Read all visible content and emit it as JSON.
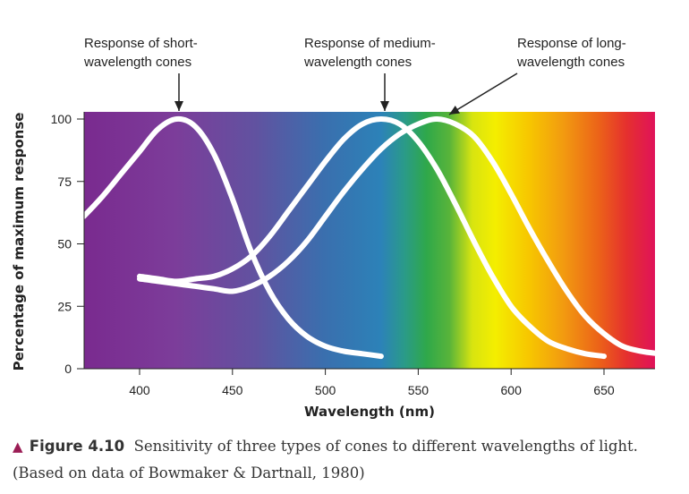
{
  "chart_data": {
    "type": "line",
    "xlabel": "Wavelength (nm)",
    "ylabel": "Percentage of maximum response",
    "xlim": [
      370,
      680
    ],
    "ylim": [
      0,
      100
    ],
    "x_ticks": [
      "400",
      "450",
      "500",
      "550",
      "600",
      "650"
    ],
    "y_ticks": [
      "0",
      "25",
      "50",
      "75",
      "100"
    ],
    "background": "visible spectrum gradient (violet to red)",
    "series": [
      {
        "key": "short",
        "x": [
          370,
          380,
          390,
          400,
          410,
          420,
          430,
          440,
          450,
          460,
          470,
          480,
          490,
          500,
          510,
          520,
          530
        ],
        "y": [
          61,
          69,
          78,
          87,
          96,
          100,
          97,
          86,
          68,
          47,
          31,
          20,
          13,
          9,
          7,
          6,
          5
        ]
      },
      {
        "key": "medium",
        "x": [
          400,
          410,
          420,
          430,
          440,
          450,
          460,
          470,
          480,
          490,
          500,
          510,
          520,
          530,
          540,
          550,
          560,
          570,
          580,
          590,
          600,
          610,
          620,
          630,
          640,
          650
        ],
        "y": [
          37,
          36,
          35,
          36,
          37,
          40,
          45,
          53,
          63,
          73,
          83,
          92,
          98,
          100,
          98,
          91,
          80,
          66,
          51,
          37,
          25,
          17,
          11,
          8,
          6,
          5
        ]
      },
      {
        "key": "long",
        "x": [
          400,
          410,
          420,
          430,
          440,
          450,
          460,
          470,
          480,
          490,
          500,
          510,
          520,
          530,
          540,
          550,
          560,
          570,
          580,
          590,
          600,
          610,
          620,
          630,
          640,
          650,
          660,
          670,
          680
        ],
        "y": [
          36,
          35,
          34,
          33,
          32,
          31,
          33,
          37,
          43,
          51,
          61,
          71,
          80,
          88,
          94,
          98,
          100,
          98,
          93,
          83,
          70,
          56,
          43,
          31,
          21,
          14,
          9,
          7,
          6
        ]
      }
    ],
    "annotations": [
      {
        "lines": [
          "Response of short-",
          "wavelength cones"
        ],
        "target_x": 421,
        "target_y": 100
      },
      {
        "lines": [
          "Response of medium-",
          "wavelength cones"
        ],
        "target_x": 531,
        "target_y": 100
      },
      {
        "lines": [
          "Response of long-",
          "wavelength cones"
        ],
        "target_x": 562,
        "target_y": 100
      }
    ]
  },
  "caption": {
    "label": "Figure 4.10",
    "text": "Sensitivity of three types of cones to different wavelengths of light. (Based on data of Bowmaker & Dartnall, 1980)"
  },
  "colors": {
    "curve": "#ffffff",
    "caption_marker": "#9b1d55",
    "spectrum": [
      "#7a2a8f",
      "#6b4a9c",
      "#4a6aa8",
      "#2f7fb5",
      "#2f9a6a",
      "#3aae3a",
      "#e8e80a",
      "#f6b800",
      "#ef7a12",
      "#e63a2a",
      "#e0185a"
    ]
  }
}
